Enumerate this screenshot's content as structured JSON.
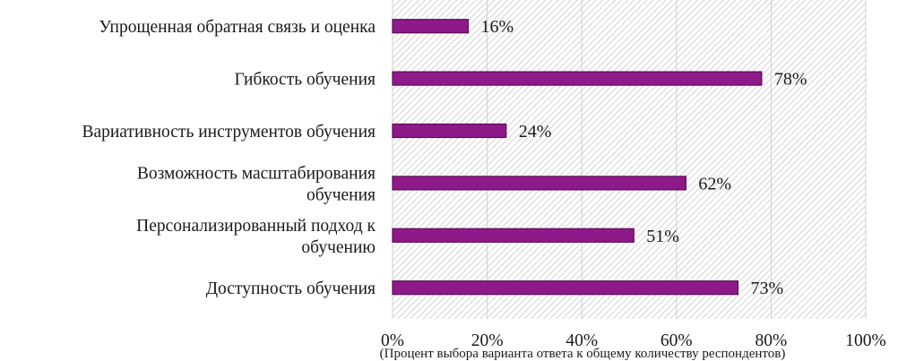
{
  "chart_data": {
    "type": "bar",
    "orientation": "horizontal",
    "categories": [
      [
        "Упрощенная обратная связь и оценка"
      ],
      [
        "Гибкость  обучения"
      ],
      [
        "Вариативность инструментов обучения"
      ],
      [
        "Возможность  масштабирования",
        "обучения"
      ],
      [
        "Персонализированный подход к",
        "обучению"
      ],
      [
        "Доступность  обучения"
      ]
    ],
    "values": [
      16,
      78,
      24,
      62,
      51,
      73
    ],
    "value_labels": [
      "16%",
      "78%",
      "24%",
      "62%",
      "51%",
      "73%"
    ],
    "xlim": [
      0,
      100
    ],
    "x_ticks": [
      0,
      20,
      40,
      60,
      80,
      100
    ],
    "x_tick_labels": [
      "0%",
      "20%",
      "40%",
      "60%",
      "80%",
      "100%"
    ],
    "xlabel": "(Процент выбора варианта ответа к общему количеству респондентов)",
    "grid": true,
    "legend": "none",
    "bar_color": "#8e1a8a",
    "bar_edge_color": "#5c0b58",
    "plot_background": "hatched-gray"
  }
}
